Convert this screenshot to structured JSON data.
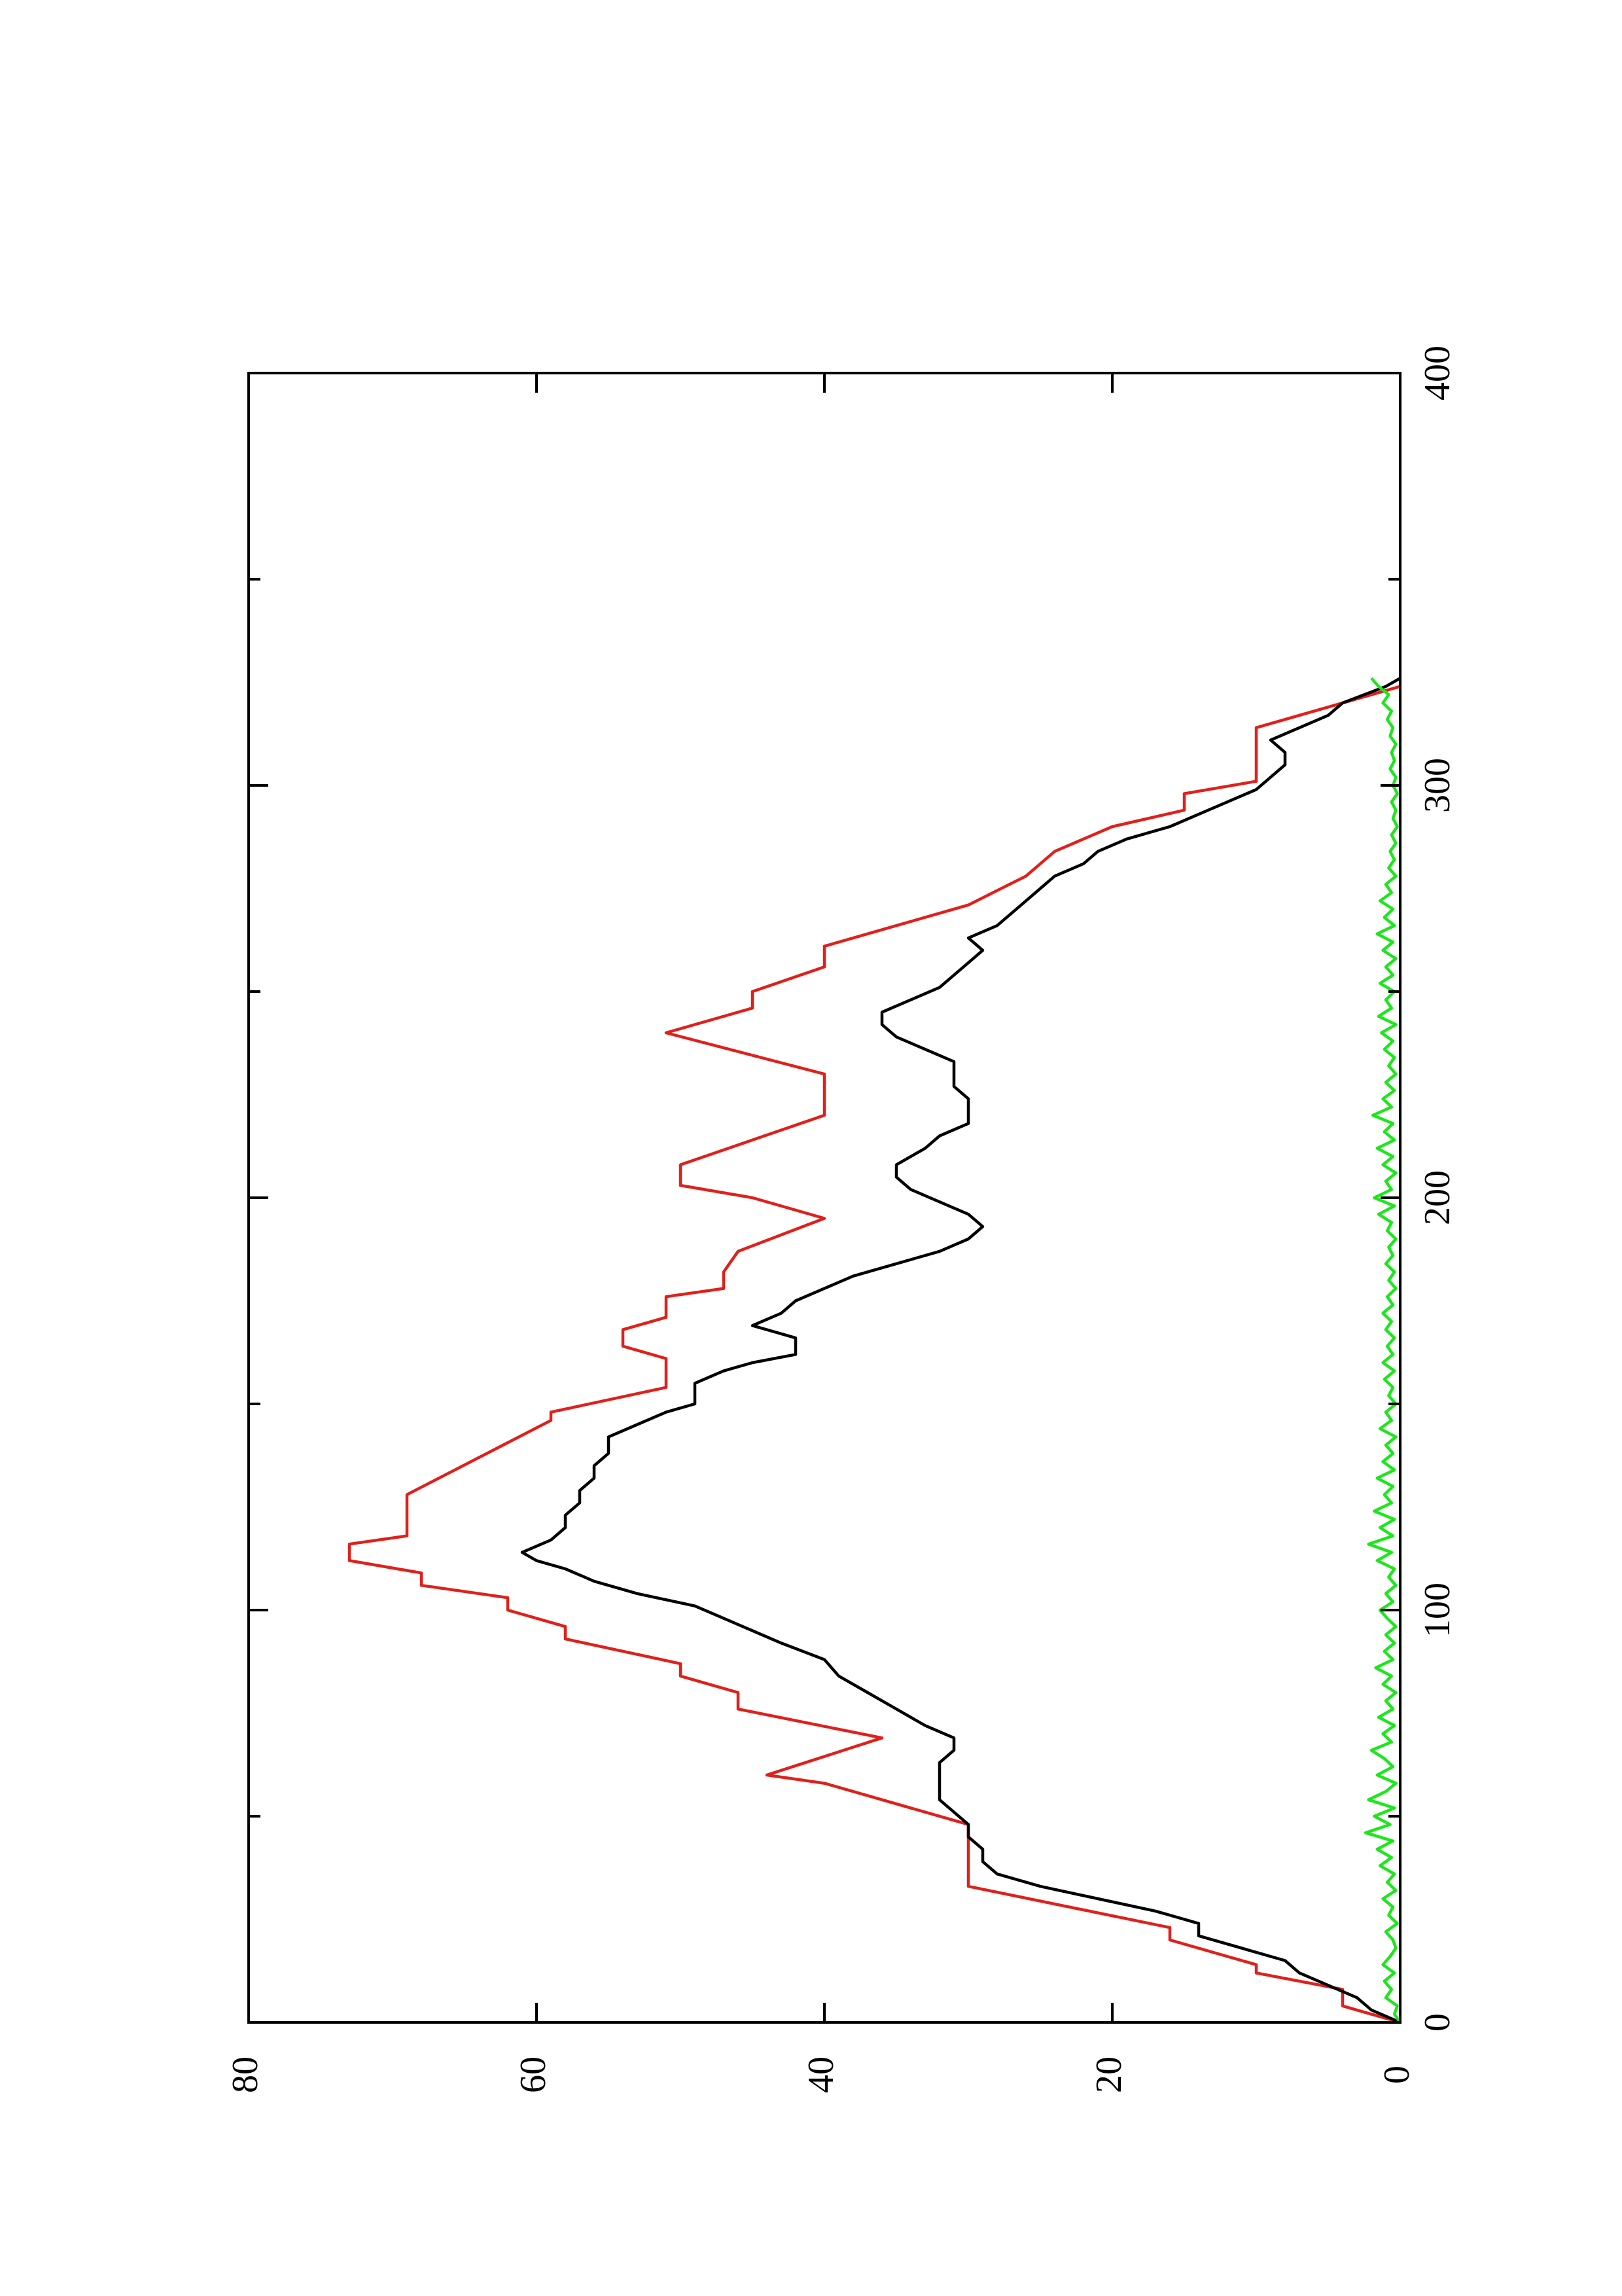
{
  "chart_data": {
    "type": "line",
    "orientation": "rotated-90-counterclockwise",
    "title": "",
    "xlabel": "",
    "ylabel": "",
    "xlim": [
      0,
      400
    ],
    "ylim": [
      0,
      80
    ],
    "x_ticks": [
      0,
      100,
      200,
      300,
      400
    ],
    "y_ticks": [
      0,
      20,
      40,
      60,
      80
    ],
    "x_tick_labels": [
      "0",
      "100",
      "200",
      "300",
      "400"
    ],
    "y_tick_labels": [
      "0",
      "20",
      "40",
      "60",
      "80"
    ],
    "grid": false,
    "legend": "none",
    "series": [
      {
        "color": "#e0201b",
        "points": [
          [
            0,
            0
          ],
          [
            2,
            2
          ],
          [
            4,
            4
          ],
          [
            8,
            4
          ],
          [
            12,
            10
          ],
          [
            14,
            10
          ],
          [
            20,
            16
          ],
          [
            23,
            16
          ],
          [
            33,
            30
          ],
          [
            48,
            30
          ],
          [
            58,
            40
          ],
          [
            60,
            44
          ],
          [
            69,
            36
          ],
          [
            76,
            46
          ],
          [
            80,
            46
          ],
          [
            84,
            50
          ],
          [
            87,
            50
          ],
          [
            93,
            58
          ],
          [
            96,
            58
          ],
          [
            100,
            62
          ],
          [
            103,
            62
          ],
          [
            106,
            68
          ],
          [
            109,
            68
          ],
          [
            112,
            73
          ],
          [
            116,
            73
          ],
          [
            118,
            69
          ],
          [
            128,
            69
          ],
          [
            146,
            59
          ],
          [
            148,
            59
          ],
          [
            154,
            51
          ],
          [
            161,
            51
          ],
          [
            164,
            54
          ],
          [
            168,
            54
          ],
          [
            171,
            51
          ],
          [
            176,
            51
          ],
          [
            178,
            47
          ],
          [
            182,
            47
          ],
          [
            187,
            46
          ],
          [
            195,
            40
          ],
          [
            200,
            45
          ],
          [
            203,
            50
          ],
          [
            208,
            50
          ],
          [
            214,
            45
          ],
          [
            220,
            40
          ],
          [
            224,
            40
          ],
          [
            230,
            40
          ],
          [
            240,
            51
          ],
          [
            246,
            45
          ],
          [
            250,
            45
          ],
          [
            256,
            40
          ],
          [
            261,
            40
          ],
          [
            266,
            35
          ],
          [
            271,
            30
          ],
          [
            278,
            26
          ],
          [
            284,
            24
          ],
          [
            290,
            20
          ],
          [
            294,
            15
          ],
          [
            298,
            15
          ],
          [
            301,
            10
          ],
          [
            314,
            10
          ],
          [
            319,
            5
          ],
          [
            324,
            0
          ]
        ]
      },
      {
        "color": "#000000",
        "points": [
          [
            0,
            0
          ],
          [
            3,
            2
          ],
          [
            6,
            3
          ],
          [
            9,
            5
          ],
          [
            12,
            7
          ],
          [
            15,
            8
          ],
          [
            18,
            11
          ],
          [
            21,
            14
          ],
          [
            24,
            14
          ],
          [
            27,
            17
          ],
          [
            30,
            21
          ],
          [
            33,
            25
          ],
          [
            36,
            28
          ],
          [
            39,
            29
          ],
          [
            42,
            29
          ],
          [
            45,
            30
          ],
          [
            48,
            30
          ],
          [
            51,
            31
          ],
          [
            54,
            32
          ],
          [
            57,
            32
          ],
          [
            60,
            32
          ],
          [
            63,
            32
          ],
          [
            66,
            31
          ],
          [
            69,
            31
          ],
          [
            72,
            33
          ],
          [
            76,
            35
          ],
          [
            80,
            37
          ],
          [
            84,
            39
          ],
          [
            88,
            40
          ],
          [
            92,
            43
          ],
          [
            95,
            45
          ],
          [
            98,
            47
          ],
          [
            101,
            49
          ],
          [
            104,
            53
          ],
          [
            107,
            56
          ],
          [
            110,
            58
          ],
          [
            112,
            60
          ],
          [
            114,
            61
          ],
          [
            117,
            59
          ],
          [
            120,
            58
          ],
          [
            123,
            58
          ],
          [
            126,
            57
          ],
          [
            129,
            57
          ],
          [
            132,
            56
          ],
          [
            135,
            56
          ],
          [
            138,
            55
          ],
          [
            142,
            55
          ],
          [
            145,
            53
          ],
          [
            148,
            51
          ],
          [
            150,
            49
          ],
          [
            155,
            49
          ],
          [
            158,
            47
          ],
          [
            160,
            45
          ],
          [
            162,
            42
          ],
          [
            166,
            42
          ],
          [
            169,
            45
          ],
          [
            172,
            43
          ],
          [
            175,
            42
          ],
          [
            178,
            40
          ],
          [
            181,
            38
          ],
          [
            184,
            35
          ],
          [
            187,
            32
          ],
          [
            190,
            30
          ],
          [
            193,
            29
          ],
          [
            196,
            30
          ],
          [
            199,
            32
          ],
          [
            202,
            34
          ],
          [
            205,
            35
          ],
          [
            208,
            35
          ],
          [
            212,
            33
          ],
          [
            215,
            32
          ],
          [
            218,
            30
          ],
          [
            221,
            30
          ],
          [
            224,
            30
          ],
          [
            227,
            31
          ],
          [
            230,
            31
          ],
          [
            233,
            31
          ],
          [
            236,
            33
          ],
          [
            239,
            35
          ],
          [
            242,
            36
          ],
          [
            245,
            36
          ],
          [
            248,
            34
          ],
          [
            251,
            32
          ],
          [
            254,
            31
          ],
          [
            257,
            30
          ],
          [
            260,
            29
          ],
          [
            263,
            30
          ],
          [
            266,
            28
          ],
          [
            269,
            27
          ],
          [
            272,
            26
          ],
          [
            275,
            25
          ],
          [
            278,
            24
          ],
          [
            281,
            22
          ],
          [
            284,
            21
          ],
          [
            287,
            19
          ],
          [
            290,
            16
          ],
          [
            293,
            14
          ],
          [
            296,
            12
          ],
          [
            299,
            10
          ],
          [
            302,
            9
          ],
          [
            305,
            8
          ],
          [
            308,
            8
          ],
          [
            311,
            9
          ],
          [
            314,
            7
          ],
          [
            317,
            5
          ],
          [
            320,
            4
          ],
          [
            324,
            1
          ],
          [
            326,
            0
          ]
        ]
      },
      {
        "color": "#1ae81a",
        "points": [
          [
            0,
            0
          ],
          [
            2,
            0.4
          ],
          [
            4,
            0.2
          ],
          [
            6,
            1
          ],
          [
            8,
            0.6
          ],
          [
            10,
            1.1
          ],
          [
            12,
            0.4
          ],
          [
            14,
            1.2
          ],
          [
            16,
            0.7
          ],
          [
            18,
            0.3
          ],
          [
            20,
            0.5
          ],
          [
            22,
            1
          ],
          [
            24,
            0.2
          ],
          [
            26,
            0.8
          ],
          [
            28,
            0.5
          ],
          [
            30,
            1.2
          ],
          [
            32,
            0.3
          ],
          [
            34,
            0.9
          ],
          [
            36,
            0.4
          ],
          [
            38,
            1.4
          ],
          [
            40,
            0.6
          ],
          [
            42,
            1.6
          ],
          [
            44,
            0.5
          ],
          [
            46,
            2.4
          ],
          [
            48,
            0.7
          ],
          [
            50,
            1.8
          ],
          [
            52,
            0.4
          ],
          [
            54,
            2.2
          ],
          [
            56,
            1
          ],
          [
            58,
            0.3
          ],
          [
            60,
            1.6
          ],
          [
            62,
            0.5
          ],
          [
            64,
            1.1
          ],
          [
            66,
            2
          ],
          [
            68,
            0.6
          ],
          [
            70,
            1.2
          ],
          [
            72,
            0.4
          ],
          [
            74,
            1.5
          ],
          [
            76,
            0.5
          ],
          [
            78,
            1
          ],
          [
            80,
            0.3
          ],
          [
            82,
            1.2
          ],
          [
            84,
            0.6
          ],
          [
            86,
            1.7
          ],
          [
            88,
            0.5
          ],
          [
            90,
            1.1
          ],
          [
            92,
            0.4
          ],
          [
            94,
            1
          ],
          [
            96,
            0.3
          ],
          [
            98,
            0.9
          ],
          [
            100,
            1.4
          ],
          [
            102,
            0.5
          ],
          [
            104,
            1
          ],
          [
            106,
            0.3
          ],
          [
            108,
            0.8
          ],
          [
            110,
            0.4
          ],
          [
            112,
            1.6
          ],
          [
            114,
            0.6
          ],
          [
            116,
            2.2
          ],
          [
            118,
            0.5
          ],
          [
            120,
            1.4
          ],
          [
            122,
            0.4
          ],
          [
            124,
            1.8
          ],
          [
            126,
            0.6
          ],
          [
            128,
            1.1
          ],
          [
            130,
            0.5
          ],
          [
            132,
            1.6
          ],
          [
            134,
            0.4
          ],
          [
            136,
            1.2
          ],
          [
            138,
            0.5
          ],
          [
            140,
            1
          ],
          [
            142,
            0.3
          ],
          [
            144,
            1.4
          ],
          [
            146,
            0.6
          ],
          [
            148,
            1
          ],
          [
            150,
            0.3
          ],
          [
            152,
            0.8
          ],
          [
            154,
            0.5
          ],
          [
            156,
            1.1
          ],
          [
            158,
            0.4
          ],
          [
            160,
            1.2
          ],
          [
            162,
            0.5
          ],
          [
            164,
            0.9
          ],
          [
            166,
            0.4
          ],
          [
            168,
            1
          ],
          [
            170,
            0.6
          ],
          [
            172,
            1.2
          ],
          [
            174,
            0.5
          ],
          [
            176,
            0.9
          ],
          [
            178,
            0.3
          ],
          [
            180,
            0.8
          ],
          [
            182,
            0.4
          ],
          [
            184,
            1
          ],
          [
            186,
            0.5
          ],
          [
            188,
            0.8
          ],
          [
            190,
            0.3
          ],
          [
            192,
            0.9
          ],
          [
            194,
            0.6
          ],
          [
            196,
            1.5
          ],
          [
            198,
            0.4
          ],
          [
            200,
            1.8
          ],
          [
            202,
            0.6
          ],
          [
            204,
            1
          ],
          [
            206,
            0.3
          ],
          [
            208,
            1.2
          ],
          [
            210,
            0.5
          ],
          [
            212,
            1.6
          ],
          [
            214,
            0.4
          ],
          [
            216,
            1.1
          ],
          [
            218,
            0.5
          ],
          [
            220,
            1.9
          ],
          [
            222,
            0.6
          ],
          [
            224,
            1.2
          ],
          [
            226,
            0.4
          ],
          [
            228,
            1
          ],
          [
            230,
            0.3
          ],
          [
            232,
            0.8
          ],
          [
            234,
            0.4
          ],
          [
            236,
            1.1
          ],
          [
            238,
            0.5
          ],
          [
            240,
            1.3
          ],
          [
            242,
            0.3
          ],
          [
            244,
            1.5
          ],
          [
            246,
            0.6
          ],
          [
            248,
            1
          ],
          [
            250,
            0.4
          ],
          [
            252,
            1.4
          ],
          [
            254,
            0.5
          ],
          [
            256,
            1
          ],
          [
            258,
            0.3
          ],
          [
            260,
            1.2
          ],
          [
            262,
            0.5
          ],
          [
            264,
            1.6
          ],
          [
            266,
            0.4
          ],
          [
            268,
            1.1
          ],
          [
            270,
            0.5
          ],
          [
            272,
            1.4
          ],
          [
            274,
            0.6
          ],
          [
            276,
            1
          ],
          [
            278,
            0.3
          ],
          [
            280,
            0.8
          ],
          [
            282,
            0.4
          ],
          [
            284,
            0.7
          ],
          [
            286,
            0.3
          ],
          [
            288,
            0.6
          ],
          [
            290,
            0.2
          ],
          [
            292,
            0.5
          ],
          [
            294,
            0.3
          ],
          [
            296,
            0.6
          ],
          [
            298,
            0.2
          ],
          [
            300,
            0.5
          ],
          [
            302,
            0.3
          ],
          [
            304,
            0.7
          ],
          [
            306,
            0.4
          ],
          [
            308,
            0.6
          ],
          [
            310,
            0.3
          ],
          [
            312,
            0.7
          ],
          [
            314,
            0.5
          ],
          [
            316,
            0.9
          ],
          [
            318,
            0.6
          ],
          [
            320,
            1.2
          ],
          [
            322,
            0.8
          ],
          [
            324,
            1.5
          ],
          [
            326,
            2
          ]
        ]
      }
    ]
  }
}
